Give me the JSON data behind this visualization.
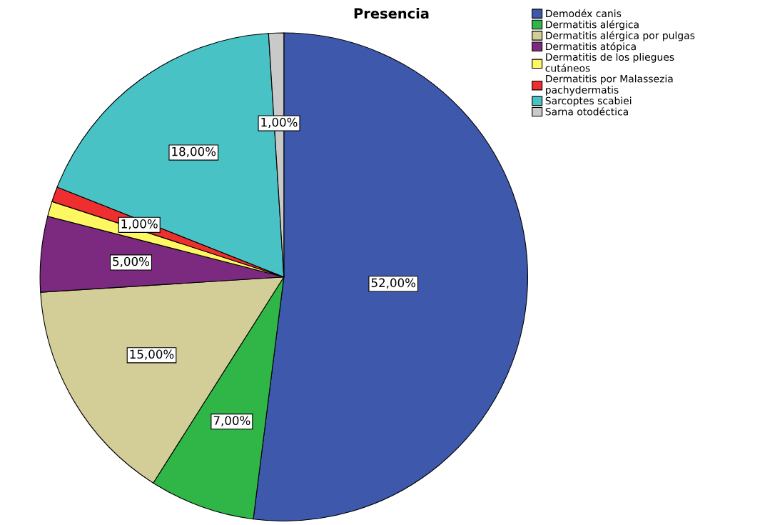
{
  "chart_data": {
    "type": "pie",
    "title": "Presencia",
    "categories": [
      "Demodéx canis",
      "Dermatitis alérgica",
      "Dermatitis alérgica por pulgas",
      "Dermatitis atópica",
      "Dermatitis de los pliegues\ncutáneos",
      "Dermatitis por Malassezia\npachydermatis",
      "Sarcoptes scabiei",
      "Sarna otodéctica"
    ],
    "values": [
      52,
      7,
      15,
      5,
      1,
      1,
      18,
      1
    ],
    "colors": [
      "#3e58ac",
      "#2fb647",
      "#d3ce97",
      "#7b2a7f",
      "#fdf761",
      "#ee2e2f",
      "#48c2c5",
      "#c9c9c9"
    ],
    "value_labels": [
      "52,00%",
      "7,00%",
      "15,00%",
      "5,00%",
      null,
      "1,00%",
      "18,00%",
      "1,00%"
    ],
    "legend": "top right"
  }
}
